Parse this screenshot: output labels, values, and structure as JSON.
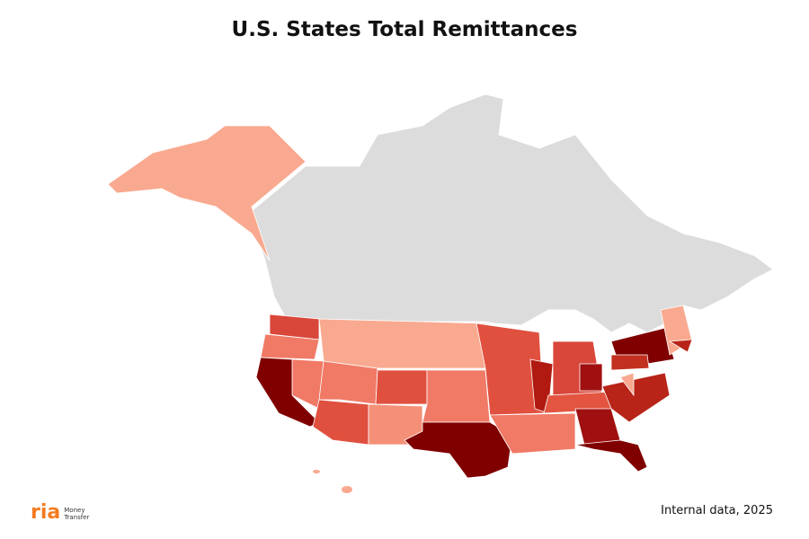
{
  "header": {
    "title": "U.S. States Total Remittances"
  },
  "footer": {
    "source": "Internal data, 2025",
    "logo": {
      "brand": "ria",
      "tagline_1": "Money",
      "tagline_2": "Transfer"
    }
  }
}
